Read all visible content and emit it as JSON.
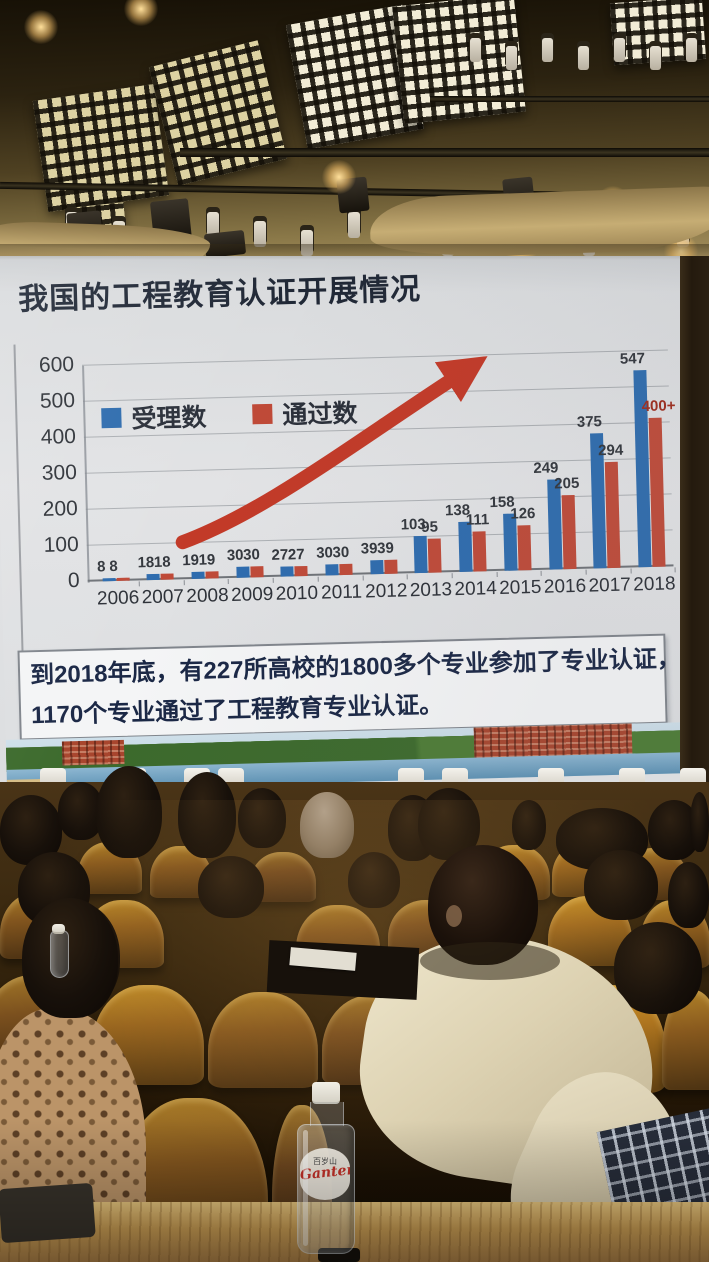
{
  "slide": {
    "title": "我国的工程教育认证开展情况",
    "note": {
      "line1": "到2018年底，有227所高校的1800多个专业参加了专业认证，",
      "line2": "1170个专业通过了工程教育专业认证。"
    }
  },
  "chart_data": {
    "type": "bar",
    "title": "",
    "categories": [
      "2006",
      "2007",
      "2008",
      "2009",
      "2010",
      "2011",
      "2012",
      "2013",
      "2014",
      "2015",
      "2016",
      "2017",
      "2018"
    ],
    "series": [
      {
        "name": "受理数",
        "color": "#2e6cae",
        "values": [
          8,
          18,
          19,
          30,
          27,
          30,
          39,
          103,
          138,
          158,
          249,
          375,
          547
        ],
        "labels": [
          "8",
          "18",
          "19",
          "30",
          "27",
          "30",
          "39",
          "103",
          "138",
          "158",
          "249",
          "375",
          "547"
        ]
      },
      {
        "name": "通过数",
        "color": "#bf4a38",
        "values": [
          8,
          18,
          19,
          30,
          27,
          30,
          39,
          95,
          111,
          126,
          205,
          294,
          415
        ],
        "labels": [
          "8",
          "18",
          "19",
          "30",
          "27",
          "30",
          "39",
          "95",
          "111",
          "126",
          "205",
          "294",
          "400+"
        ]
      }
    ],
    "ylim": [
      0,
      600
    ],
    "yticks": [
      0,
      100,
      200,
      300,
      400,
      500,
      600
    ],
    "grid": true,
    "legend_position": "top-left-inside",
    "annotation": "red-growth-arrow",
    "annotation_color": "#c23a28",
    "special_label_color": "#9e2c1c"
  },
  "scene": {
    "bottle_brand_cn": "百岁山",
    "bottle_brand_script": "Ganten"
  }
}
